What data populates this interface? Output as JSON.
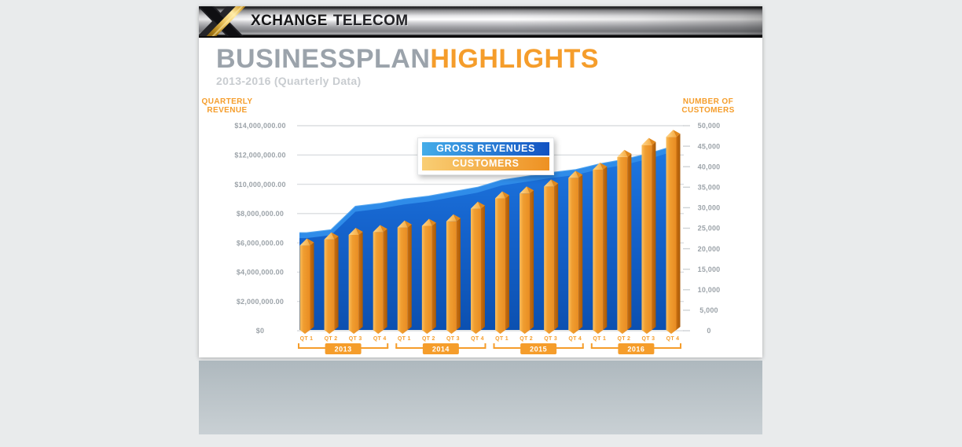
{
  "header": {
    "brand_bold": "XCHANGE",
    "brand_rest": "TELECOM"
  },
  "title": {
    "part1": "BUSINESSPLAN",
    "part2": "HIGHLIGHTS",
    "subtitle": "2013-2016 (Quarterly Data)"
  },
  "colors": {
    "accent_orange": "#f59d2b",
    "title_gray": "#9ba3ab",
    "tick_gray": "#9ca3a9",
    "gridline": "#dbdee1",
    "area_blue_top": "#1e78e2",
    "area_blue_bottom": "#0c50b0",
    "area_bevel": "#2f8ce9",
    "bar_light": "#fbbe5d",
    "bar_mid": "#ee9a2f",
    "bar_dark": "#b45f09"
  },
  "legend": {
    "items": [
      {
        "label": "GROSS REVENUES",
        "color_from": "#45ade9",
        "color_to": "#1252c2"
      },
      {
        "label": "CUSTOMERS",
        "color_from": "#f9ce74",
        "color_to": "#ee9122"
      }
    ]
  },
  "chart_data": {
    "type": "combo",
    "grid": true,
    "legend_position": "top-center-floating",
    "x": {
      "years": [
        "2013",
        "2014",
        "2015",
        "2016"
      ],
      "quarter_labels": [
        "QT 1",
        "QT 2",
        "QT 3",
        "QT 4"
      ]
    },
    "left_axis": {
      "title": "QUARTERLY REVENUE",
      "range": [
        0,
        14000000
      ],
      "tick_labels": [
        "$14,000,000.00",
        "$12,000,000.00",
        "$10,000,000.00",
        "$8,000,000.00",
        "$6,000,000.00",
        "$4,000,000.00",
        "$2,000,000.00",
        "$0"
      ]
    },
    "right_axis": {
      "title": "NUMBER OF CUSTOMERS",
      "range": [
        0,
        50000
      ],
      "tick_labels": [
        "50,000",
        "45,000",
        "40,000",
        "35,000",
        "30,000",
        "25,000",
        "20,000",
        "15,000",
        "10,000",
        "5,000",
        "0"
      ]
    },
    "series": [
      {
        "name": "GROSS REVENUES",
        "type": "area",
        "axis": "left",
        "values": [
          6700000,
          6900000,
          8500000,
          8700000,
          9000000,
          9200000,
          9500000,
          9800000,
          10300000,
          10550000,
          10800000,
          11000000,
          11400000,
          11700000,
          12100000,
          12600000
        ]
      },
      {
        "name": "CUSTOMERS",
        "type": "bar",
        "axis": "right",
        "values": [
          22500,
          24000,
          25100,
          25800,
          26900,
          27300,
          28400,
          31500,
          34000,
          35200,
          36900,
          39000,
          41000,
          44100,
          47000,
          49000
        ]
      }
    ]
  }
}
